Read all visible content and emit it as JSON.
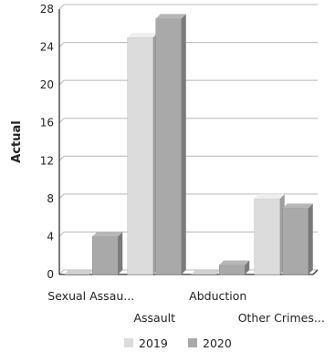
{
  "chart_data": {
    "type": "bar",
    "ylabel": "Actual",
    "ylim": [
      0,
      28
    ],
    "yticks": [
      0,
      4,
      8,
      12,
      16,
      20,
      24,
      28
    ],
    "grid": true,
    "legend_position": "bottom",
    "categories": [
      "Sexual Assau...",
      "Assault",
      "Abduction",
      "Other Crimes..."
    ],
    "series": [
      {
        "name": "2019",
        "color": "#dcdcdc",
        "values": [
          0,
          25,
          0,
          8
        ]
      },
      {
        "name": "2020",
        "color": "#a9a9a9",
        "values": [
          4,
          27,
          1,
          7
        ]
      }
    ]
  }
}
